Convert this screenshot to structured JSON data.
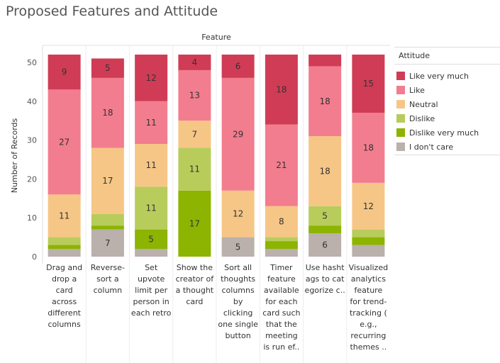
{
  "title": "Proposed Features and Attitude",
  "chart_data": {
    "type": "bar",
    "stacked": true,
    "header": "Feature",
    "ylabel": "Number of Records",
    "ylim": [
      0,
      52
    ],
    "yticks": [
      0,
      10,
      20,
      30,
      40,
      50
    ],
    "categories": [
      [
        "Drag and",
        "drop a",
        "card",
        "across",
        "different",
        "columns"
      ],
      [
        "Reverse-",
        "sort a",
        "column"
      ],
      [
        "Set",
        "upvote",
        "limit per",
        "person in",
        "each retro"
      ],
      [
        "Show the",
        "creator of",
        "a thought",
        "card"
      ],
      [
        "Sort all",
        "thoughts",
        "columns",
        "by",
        "clicking",
        "one single",
        "button"
      ],
      [
        "Timer",
        "feature",
        "available",
        "for each",
        "card such",
        "that the",
        "meeting",
        "is run ef.."
      ],
      [
        "Use hasht",
        "ags to cat",
        "egorize c.."
      ],
      [
        "Visualized",
        "analytics",
        "feature",
        "for trend-",
        "tracking (",
        "e.g.,",
        "recurring",
        "themes .."
      ]
    ],
    "series": [
      {
        "name": "I don't care",
        "color": "#bab0ac",
        "values": [
          2,
          7,
          2,
          0,
          5,
          2,
          6,
          3
        ],
        "labels": [
          "",
          "7",
          "",
          "",
          "5",
          "",
          "6",
          ""
        ]
      },
      {
        "name": "Dislike very much",
        "color": "#8cb400",
        "values": [
          1,
          1,
          5,
          17,
          0,
          2,
          2,
          2
        ],
        "labels": [
          "",
          "",
          "5",
          "17",
          "",
          "",
          "",
          ""
        ]
      },
      {
        "name": "Dislike",
        "color": "#b8cc5c",
        "values": [
          2,
          3,
          11,
          11,
          0,
          1,
          5,
          2
        ],
        "labels": [
          "",
          "",
          "11",
          "11",
          "",
          "",
          "5",
          ""
        ]
      },
      {
        "name": "Neutral",
        "color": "#f6c686",
        "values": [
          11,
          17,
          11,
          7,
          12,
          8,
          18,
          12
        ],
        "labels": [
          "11",
          "17",
          "11",
          "7",
          "12",
          "8",
          "18",
          "12"
        ]
      },
      {
        "name": "Like",
        "color": "#f27d8f",
        "values": [
          27,
          18,
          11,
          13,
          29,
          21,
          18,
          18
        ],
        "labels": [
          "27",
          "18",
          "11",
          "13",
          "29",
          "21",
          "18",
          "18"
        ]
      },
      {
        "name": "Like very much",
        "color": "#d03c55",
        "values": [
          9,
          5,
          12,
          4,
          6,
          18,
          3,
          15
        ],
        "labels": [
          "9",
          "5",
          "12",
          "4",
          "6",
          "18",
          "",
          "15"
        ]
      }
    ]
  },
  "legend": {
    "title": "Attitude",
    "items": [
      {
        "label": "Like very much",
        "color": "#d03c55"
      },
      {
        "label": "Like",
        "color": "#f27d8f"
      },
      {
        "label": "Neutral",
        "color": "#f6c686"
      },
      {
        "label": "Dislike",
        "color": "#b8cc5c"
      },
      {
        "label": "Dislike very much",
        "color": "#8cb400"
      },
      {
        "label": "I don't care",
        "color": "#bab0ac"
      }
    ]
  }
}
